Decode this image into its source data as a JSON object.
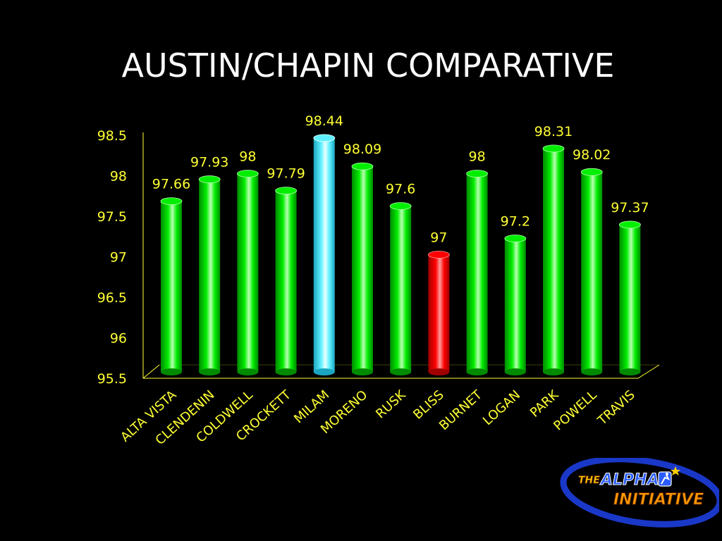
{
  "slide": {
    "title": "AUSTIN/CHAPIN COMPARATIVE"
  },
  "colors": {
    "background": "#000000",
    "axis_text": "#ffff33",
    "bar_default": "#00ee00",
    "bar_highlight": "#5ff0ff",
    "bar_lowest": "#ff0000",
    "title_text": "#ffffff"
  },
  "chart_data": {
    "type": "bar",
    "title": "AUSTIN/CHAPIN COMPARATIVE",
    "xlabel": "",
    "ylabel": "",
    "ylim": [
      95.5,
      98.5
    ],
    "yticks": [
      "95.5",
      "96",
      "96.5",
      "97",
      "97.5",
      "98",
      "98.5"
    ],
    "categories": [
      "ALTA VISTA",
      "CLENDENIN",
      "COLDWELL",
      "CROCKETT",
      "MILAM",
      "MORENO",
      "RUSK",
      "BLISS",
      "BURNET",
      "LOGAN",
      "PARK",
      "POWELL",
      "TRAVIS"
    ],
    "values": [
      97.66,
      97.93,
      98,
      97.79,
      98.44,
      98.09,
      97.6,
      97,
      98,
      97.2,
      98.31,
      98.02,
      97.37
    ],
    "value_labels": [
      "97.66",
      "97.93",
      "98",
      "97.79",
      "98.44",
      "98.09",
      "97.6",
      "97",
      "98",
      "97.2",
      "98.31",
      "98.02",
      "97.37"
    ],
    "bar_colors": [
      "green",
      "green",
      "green",
      "green",
      "cyan",
      "green",
      "green",
      "red",
      "green",
      "green",
      "green",
      "green",
      "green"
    ],
    "grid": false,
    "legend": "none",
    "style": "3d-cylinder"
  },
  "logo": {
    "line1_small": "THE",
    "line1": "ALPHA",
    "line2": "INITIATIVE"
  }
}
